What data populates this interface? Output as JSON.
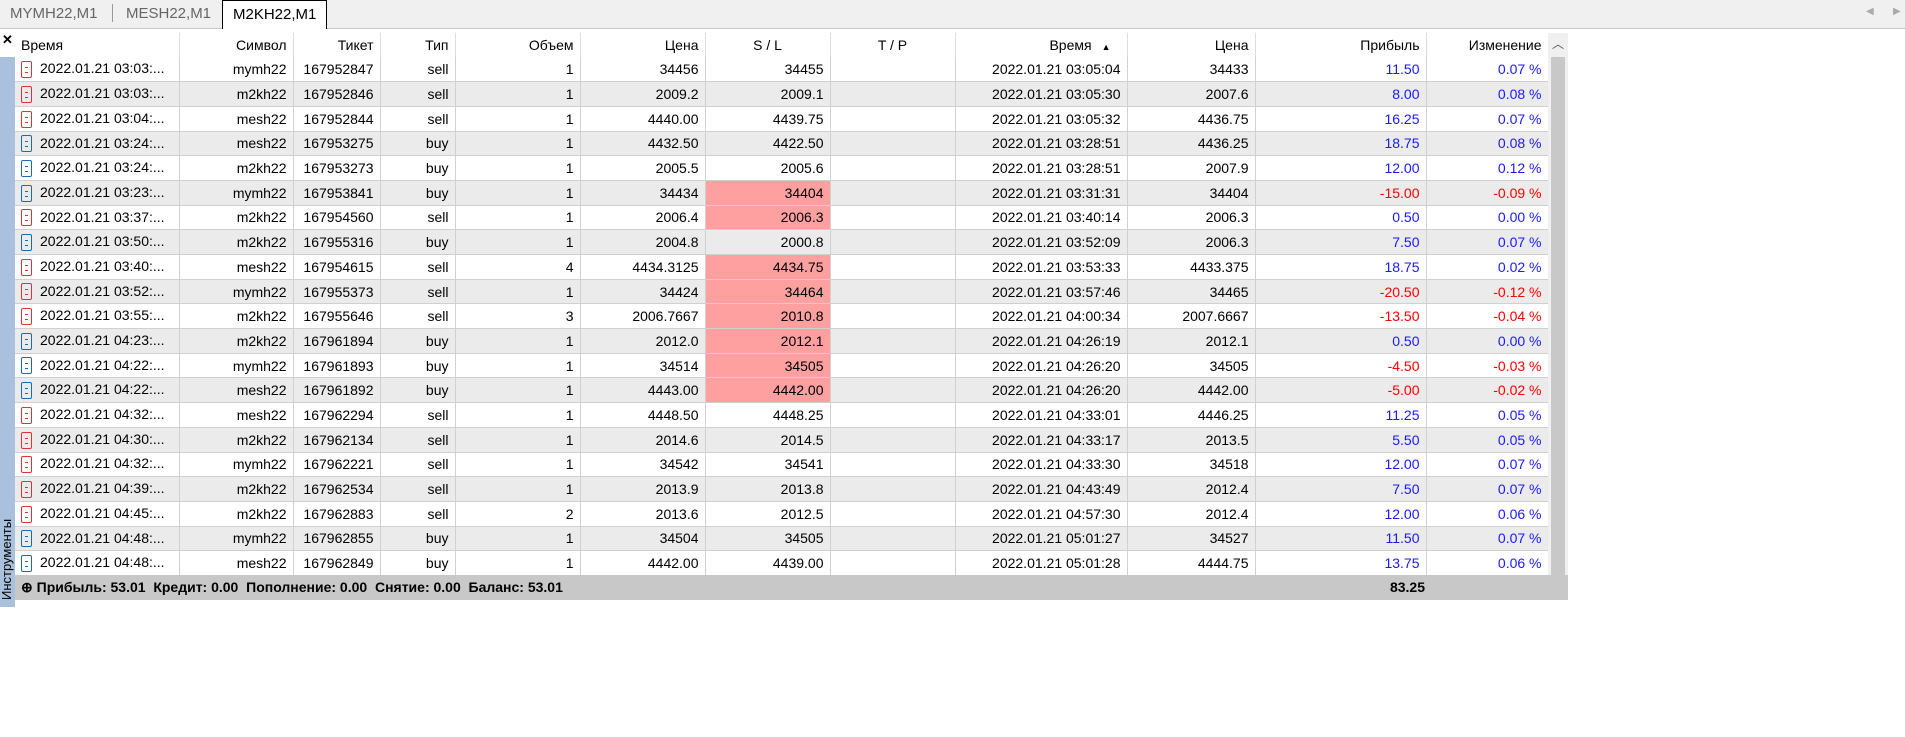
{
  "tabs": [
    "MYMH22,M1",
    "MESH22,M1",
    "M2KH22,M1"
  ],
  "active_tab": 2,
  "side_label": "Инструменты",
  "columns": [
    "Время",
    "Символ",
    "Тикет",
    "Тип",
    "Объем",
    "Цена",
    "S / L",
    "T / P",
    "Время",
    "Цена",
    "Прибыль",
    "Изменение"
  ],
  "sort_indicator": "▲",
  "rows": [
    [
      "2022.01.21 03:03:...",
      "mymh22",
      "167952847",
      "sell",
      "1",
      "34456",
      "34455",
      "",
      "2022.01.21 03:05:04",
      "34433",
      "11.50",
      "0.07 %"
    ],
    [
      "2022.01.21 03:03:...",
      "m2kh22",
      "167952846",
      "sell",
      "1",
      "2009.2",
      "2009.1",
      "",
      "2022.01.21 03:05:30",
      "2007.6",
      "8.00",
      "0.08 %"
    ],
    [
      "2022.01.21 03:04:...",
      "mesh22",
      "167952844",
      "sell",
      "1",
      "4440.00",
      "4439.75",
      "",
      "2022.01.21 03:05:32",
      "4436.75",
      "16.25",
      "0.07 %"
    ],
    [
      "2022.01.21 03:24:...",
      "mesh22",
      "167953275",
      "buy",
      "1",
      "4432.50",
      "4422.50",
      "",
      "2022.01.21 03:28:51",
      "4436.25",
      "18.75",
      "0.08 %"
    ],
    [
      "2022.01.21 03:24:...",
      "m2kh22",
      "167953273",
      "buy",
      "1",
      "2005.5",
      "2005.6",
      "",
      "2022.01.21 03:28:51",
      "2007.9",
      "12.00",
      "0.12 %"
    ],
    [
      "2022.01.21 03:23:...",
      "mymh22",
      "167953841",
      "buy",
      "1",
      "34434",
      "34404",
      "",
      "2022.01.21 03:31:31",
      "34404",
      "-15.00",
      "-0.09 %"
    ],
    [
      "2022.01.21 03:37:...",
      "m2kh22",
      "167954560",
      "sell",
      "1",
      "2006.4",
      "2006.3",
      "",
      "2022.01.21 03:40:14",
      "2006.3",
      "0.50",
      "0.00 %"
    ],
    [
      "2022.01.21 03:50:...",
      "m2kh22",
      "167955316",
      "buy",
      "1",
      "2004.8",
      "2000.8",
      "",
      "2022.01.21 03:52:09",
      "2006.3",
      "7.50",
      "0.07 %"
    ],
    [
      "2022.01.21 03:40:...",
      "mesh22",
      "167954615",
      "sell",
      "4",
      "4434.3125",
      "4434.75",
      "",
      "2022.01.21 03:53:33",
      "4433.375",
      "18.75",
      "0.02 %"
    ],
    [
      "2022.01.21 03:52:...",
      "mymh22",
      "167955373",
      "sell",
      "1",
      "34424",
      "34464",
      "",
      "2022.01.21 03:57:46",
      "34465",
      "-20.50",
      "-0.12 %"
    ],
    [
      "2022.01.21 03:55:...",
      "m2kh22",
      "167955646",
      "sell",
      "3",
      "2006.7667",
      "2010.8",
      "",
      "2022.01.21 04:00:34",
      "2007.6667",
      "-13.50",
      "-0.04 %"
    ],
    [
      "2022.01.21 04:23:...",
      "m2kh22",
      "167961894",
      "buy",
      "1",
      "2012.0",
      "2012.1",
      "",
      "2022.01.21 04:26:19",
      "2012.1",
      "0.50",
      "0.00 %"
    ],
    [
      "2022.01.21 04:22:...",
      "mymh22",
      "167961893",
      "buy",
      "1",
      "34514",
      "34505",
      "",
      "2022.01.21 04:26:20",
      "34505",
      "-4.50",
      "-0.03 %"
    ],
    [
      "2022.01.21 04:22:...",
      "mesh22",
      "167961892",
      "buy",
      "1",
      "4443.00",
      "4442.00",
      "",
      "2022.01.21 04:26:20",
      "4442.00",
      "-5.00",
      "-0.02 %"
    ],
    [
      "2022.01.21 04:32:...",
      "mesh22",
      "167962294",
      "sell",
      "1",
      "4448.50",
      "4448.25",
      "",
      "2022.01.21 04:33:01",
      "4446.25",
      "11.25",
      "0.05 %"
    ],
    [
      "2022.01.21 04:30:...",
      "m2kh22",
      "167962134",
      "sell",
      "1",
      "2014.6",
      "2014.5",
      "",
      "2022.01.21 04:33:17",
      "2013.5",
      "5.50",
      "0.05 %"
    ],
    [
      "2022.01.21 04:32:...",
      "mymh22",
      "167962221",
      "sell",
      "1",
      "34542",
      "34541",
      "",
      "2022.01.21 04:33:30",
      "34518",
      "12.00",
      "0.07 %"
    ],
    [
      "2022.01.21 04:39:...",
      "m2kh22",
      "167962534",
      "sell",
      "1",
      "2013.9",
      "2013.8",
      "",
      "2022.01.21 04:43:49",
      "2012.4",
      "7.50",
      "0.07 %"
    ],
    [
      "2022.01.21 04:45:...",
      "m2kh22",
      "167962883",
      "sell",
      "2",
      "2013.6",
      "2012.5",
      "",
      "2022.01.21 04:57:30",
      "2012.4",
      "12.00",
      "0.06 %"
    ],
    [
      "2022.01.21 04:48:...",
      "mymh22",
      "167962855",
      "buy",
      "1",
      "34504",
      "34505",
      "",
      "2022.01.21 05:01:27",
      "34527",
      "11.50",
      "0.07 %"
    ],
    [
      "2022.01.21 04:48:...",
      "mesh22",
      "167962849",
      "buy",
      "1",
      "4442.00",
      "4439.00",
      "",
      "2022.01.21 05:01:28",
      "4444.75",
      "13.75",
      "0.06 %"
    ]
  ],
  "sl_hit_rows": [
    5,
    6,
    8,
    9,
    10,
    11,
    12,
    13
  ],
  "colors": {
    "sell": "#dd3333",
    "buy": "#1a6bb5",
    "profit": "#1a1aff",
    "loss": "#ff0000",
    "sl_highlight": "#ffa0a0"
  },
  "footer": {
    "summary": "Прибыль: 53.01  Кредит: 0.00  Пополнение: 0.00  Снятие: 0.00  Баланс: 53.01",
    "total_profit": "83.25"
  }
}
